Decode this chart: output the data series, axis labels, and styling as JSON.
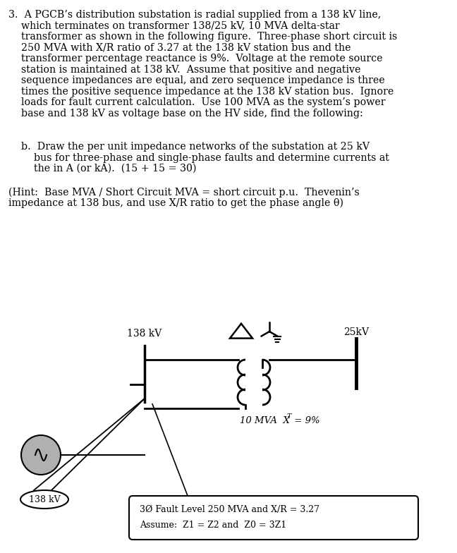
{
  "main_text_line1": "3.  A PGCB’s distribution substation is radial supplied from a 138 kV line,",
  "main_text_line2": "    which terminates on transformer 138/25 kV, 10 MVA delta-star",
  "main_text_line3": "    transformer as shown in the following figure.  Three-phase short circuit is",
  "main_text_line4": "    250 MVA with X/R ratio of 3.27 at the 138 kV station bus and the",
  "main_text_line5": "    transformer percentage reactance is 9%.  Voltage at the remote source",
  "main_text_line6": "    station is maintained at 138 kV.  Assume that positive and negative",
  "main_text_line7": "    sequence impedances are equal, and zero sequence impedance is three",
  "main_text_line8": "    times the positive sequence impedance at the 138 kV station bus.  Ignore",
  "main_text_line9": "    loads for fault current calculation.  Use 100 MVA as the system’s power",
  "main_text_line10": "    base and 138 kV as voltage base on the HV side, find the following:",
  "sub_b_line1": "    b.  Draw the per unit impedance networks of the substation at 25 kV",
  "sub_b_line2": "        bus for three-phase and single-phase faults and determine currents at",
  "sub_b_line3": "        the in A (or kA).  (15 + 15 = 30)",
  "hint_line1": "(Hint:  Base MVA / Short Circuit MVA = short circuit p.u.  Thevenin’s",
  "hint_line2": "impedance at 138 bus, and use X/R ratio to get the phase angle θ)",
  "label_138kV": "138 kV",
  "label_25kV": "25kV",
  "label_transformer": "10 MVA  X",
  "label_transformer2": " = 9%",
  "label_T_sub": "T",
  "box_line1": "3Ø Fault Level 250 MVA and X/R = 3.27",
  "box_line2": "Assume:  Z1 = Z2 and  Z0 = 3Z1",
  "label_source": "138 kV",
  "bg_color": "#ffffff",
  "text_color": "#000000",
  "line_color": "#000000",
  "font_size_main": 10.2,
  "font_size_label": 10
}
